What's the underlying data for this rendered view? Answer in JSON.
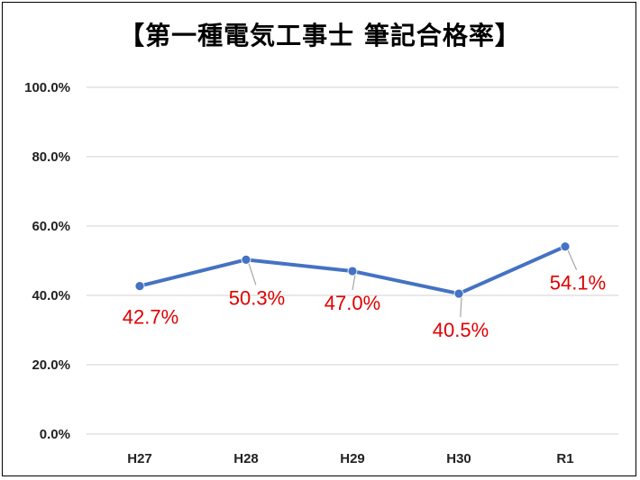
{
  "chart_data": {
    "type": "line",
    "title": "【第一種電気工事士 筆記合格率】",
    "categories": [
      "H27",
      "H28",
      "H29",
      "H30",
      "R1"
    ],
    "series": [
      {
        "values": [
          42.7,
          50.3,
          47.0,
          40.5,
          54.1
        ]
      }
    ],
    "data_labels": [
      "42.7%",
      "50.3%",
      "47.0%",
      "40.5%",
      "54.1%"
    ],
    "y_ticks": [
      "0.0%",
      "20.0%",
      "40.0%",
      "60.0%",
      "80.0%",
      "100.0%"
    ],
    "ylim": [
      0,
      100
    ],
    "grid": true,
    "line_color": "#4472c4",
    "label_color": "#e00000"
  }
}
